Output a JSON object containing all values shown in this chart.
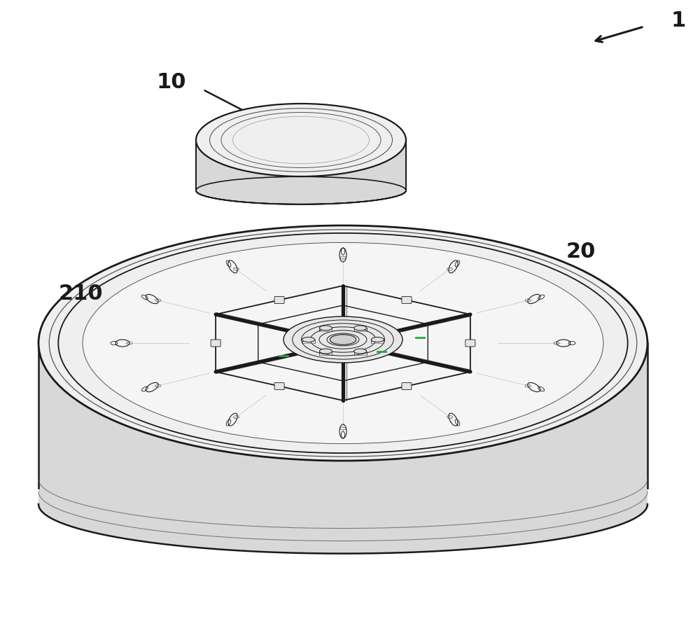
{
  "bg_color": "#ffffff",
  "line_color": "#1a1a1a",
  "line_color2": "#555555",
  "light_line_color": "#999999",
  "fill_top": "#efefef",
  "fill_side": "#d8d8d8",
  "fill_side2": "#c8c8c8",
  "fill_inner": "#f5f5f5",
  "fill_white": "#ffffff",
  "label_1": "1",
  "label_10": "10",
  "label_20": "20",
  "label_210": "210",
  "green_color": "#22aa44"
}
